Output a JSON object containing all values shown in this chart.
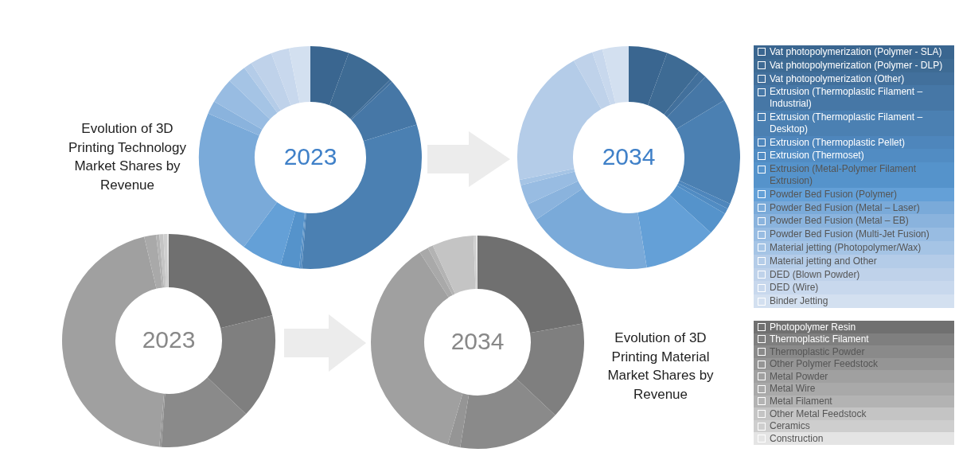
{
  "chart_data": [
    {
      "type": "donut",
      "title": "Evolution of 3D Printing Technology Market Shares by Revenue",
      "legend": "right",
      "categories": [
        "Vat photopolymerization (Polymer - SLA)",
        "Vat photopolymerization (Polymer - DLP)",
        "Vat photopolymerization (Other)",
        "Extrusion (Thermoplastic Filament – Industrial)",
        "Extrusion (Thermoplastic Filament – Desktop)",
        "Extrusion (Thermoplastic Pellet)",
        "Extrusion (Thermoset)",
        "Extrusion (Metal-Polymer Filament Extrusion)",
        "Powder Bed Fusion (Polymer)",
        "Powder Bed Fusion (Metal – Laser)",
        "Powder Bed Fusion (Metal – EB)",
        "Powder Bed Fusion (Multi-Jet Fusion)",
        "Material jetting (Photopolymer/Wax)",
        "Material jetting and Other",
        "DED (Blown Powder)",
        "DED (Wire)",
        "Binder Jetting"
      ],
      "colors": [
        "#3a6690",
        "#3e6b94",
        "#42709c",
        "#4677a6",
        "#4b80b2",
        "#4e86bc",
        "#518cc3",
        "#5593cb",
        "#64a0d7",
        "#7aaad9",
        "#8ab3dd",
        "#98bce2",
        "#a5c4e5",
        "#b4cce8",
        "#bfd2ea",
        "#c8d8ed",
        "#d3e0f0"
      ],
      "series": [
        {
          "name": "2023",
          "values": [
            5.6,
            7.1,
            0.4,
            7.1,
            31.0,
            0.2,
            0.2,
            2.7,
            5.9,
            21.3,
            1.9,
            3.7,
            2.8,
            1.2,
            3.2,
            2.6,
            3.1
          ]
        },
        {
          "name": "2034",
          "values": [
            5.6,
            5.3,
            1.2,
            4.3,
            15.4,
            0.8,
            0.8,
            3.4,
            10.6,
            18.2,
            2.5,
            2.9,
            0.8,
            20.0,
            2.9,
            1.5,
            3.8
          ]
        }
      ]
    },
    {
      "type": "donut",
      "title": "Evolution of 3D Printing Material Market Shares by Revenue",
      "legend": "right",
      "categories": [
        "Photopolymer Resin",
        "Thermoplastic Filament",
        "Thermoplastic Powder",
        "Other Polymer Feedstock",
        "Metal Powder",
        "Metal Wire",
        "Metal Filament",
        "Other Metal Feedstock",
        "Ceramics",
        "Construction"
      ],
      "colors": [
        "#707070",
        "#7f7f7f",
        "#8a8a8a",
        "#959595",
        "#a0a0a0",
        "#a9a9a9",
        "#b3b3b3",
        "#c4c4c4",
        "#cecece",
        "#e4e4e4"
      ],
      "series": [
        {
          "name": "2023",
          "values": [
            21.2,
            15.9,
            14.0,
            0.3,
            44.9,
            1.8,
            0.5,
            0.6,
            0.6,
            0.2
          ]
        },
        {
          "name": "2034",
          "values": [
            22.2,
            14.8,
            15.6,
            1.9,
            36.4,
            1.4,
            0.8,
            6.3,
            0.4,
            0.2
          ]
        }
      ]
    }
  ]
}
